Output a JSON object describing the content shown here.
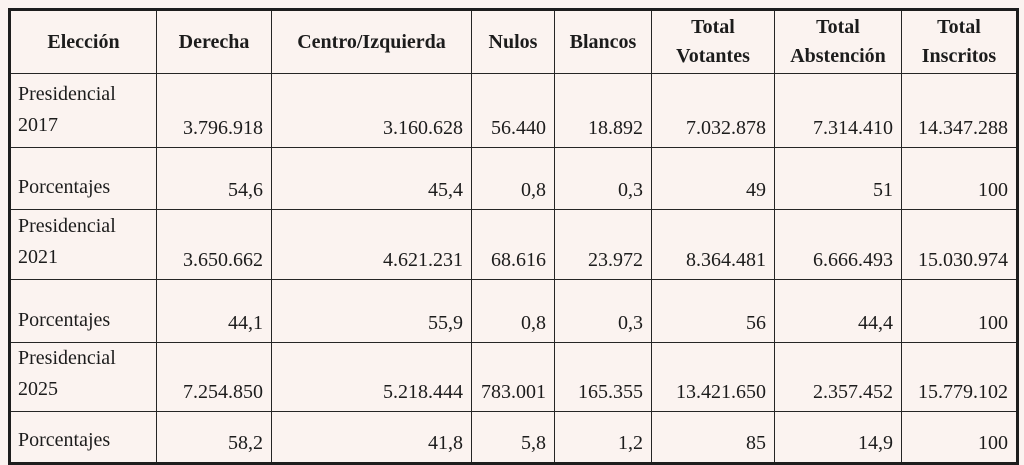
{
  "colors": {
    "background": "#fbf3f0",
    "border": "#1d1d1d",
    "text": "#1c1c1c"
  },
  "chart_data": {
    "type": "table",
    "columns": [
      "Elección",
      "Derecha",
      "Centro/Izquierda",
      "Nulos",
      "Blancos",
      "Total Votantes",
      "Total Abstención",
      "Total Inscritos"
    ],
    "rows": [
      {
        "label_lines": [
          "Presidencial",
          "2017"
        ],
        "values": [
          "3.796.918",
          "3.160.628",
          "56.440",
          "18.892",
          "7.032.878",
          "7.314.410",
          "14.347.288"
        ]
      },
      {
        "label_lines": [
          "Porcentajes"
        ],
        "values": [
          "54,6",
          "45,4",
          "0,8",
          "0,3",
          "49",
          "51",
          "100"
        ]
      },
      {
        "label_lines": [
          "Presidencial",
          "2021"
        ],
        "values": [
          "3.650.662",
          "4.621.231",
          "68.616",
          "23.972",
          "8.364.481",
          "6.666.493",
          "15.030.974"
        ]
      },
      {
        "label_lines": [
          "Porcentajes"
        ],
        "values": [
          "44,1",
          "55,9",
          "0,8",
          "0,3",
          "56",
          "44,4",
          "100"
        ]
      },
      {
        "label_lines": [
          "Presidencial",
          "2025"
        ],
        "values": [
          "7.254.850",
          "5.218.444",
          "783.001",
          "165.355",
          "13.421.650",
          "2.357.452",
          "15.779.102"
        ]
      },
      {
        "label_lines": [
          "Porcentajes"
        ],
        "values": [
          "58,2",
          "41,8",
          "5,8",
          "1,2",
          "85",
          "14,9",
          "100"
        ]
      }
    ]
  }
}
